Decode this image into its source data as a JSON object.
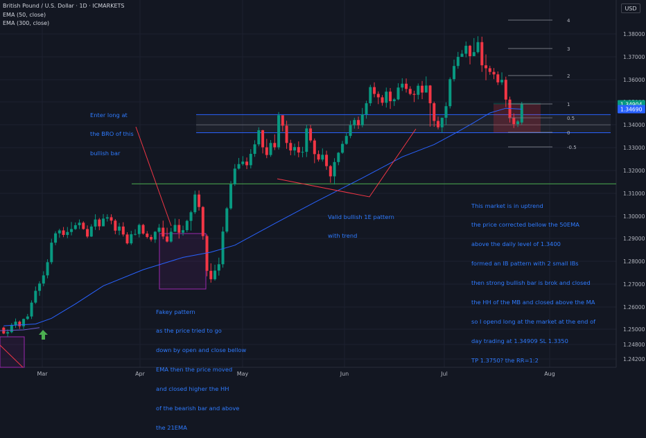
{
  "header": {
    "title": "British Pound / U.S. Dollar · 1D · ICMARKETS",
    "indicator_1": "EMA (50, close)",
    "indicator_2": "EMA (300, close)"
  },
  "currency_button": "USD",
  "price_axis": {
    "labels": [
      "1.38000",
      "1.37000",
      "1.36000",
      "1.35000",
      "1.34000",
      "1.33000",
      "1.32000",
      "1.31000",
      "1.30000",
      "1.29000",
      "1.28000",
      "1.27000",
      "1.26000",
      "1.25000",
      "1.24800",
      "1.24200"
    ],
    "tags": [
      {
        "label": "1.34904",
        "bg": "#089981"
      },
      {
        "label": "1.34690",
        "bg": "#2962ff"
      }
    ]
  },
  "time_axis": {
    "labels": [
      "Mar",
      "Apr",
      "May",
      "Jun",
      "Jul",
      "Aug"
    ]
  },
  "fib_levels": [
    "4",
    "3",
    "2",
    "1",
    "0.5",
    "0",
    "-0.5"
  ],
  "notes": {
    "entry": [
      "Enter long at",
      "the BRO of this",
      "bullish bar"
    ],
    "fakey": [
      "Fakey pattern",
      "as the price tried to go",
      "down by open and close bellow",
      "EMA then the price moved",
      "and closed higher the HH",
      "of the bearish bar and above",
      "the 21EMA"
    ],
    "valid": [
      "Valid bullish 1E pattern",
      "with trend"
    ],
    "market": [
      "This market is in uptrend",
      "the price corrected bellow the 50EMA",
      "above the daily level of 1.3400",
      "formed an IB pattern with 2 small IBs",
      "then strong bullish bar is brok and closed",
      "the HH of the MB and closed above the MA",
      "so I opend long at the market at the end of",
      "day trading at 1.34909 SL 1.3350",
      "TP 1.3750? the RR=1:2"
    ]
  },
  "colors": {
    "up": "#089981",
    "down": "#f23645",
    "ema": "#2962ff",
    "note": "#2f7bff",
    "level": "#4caf50",
    "zone": "#787b86",
    "box": "#9c27b0",
    "arrow": "#4caf50"
  },
  "chart_data": {
    "type": "candlestick",
    "symbol": "British Pound / U.S. Dollar",
    "timeframe": "1D",
    "exchange": "ICMARKETS",
    "x_axis_labels": [
      "Mar",
      "Apr",
      "May",
      "Jun",
      "Jul",
      "Aug"
    ],
    "y_axis_labels": [
      1.38,
      1.37,
      1.36,
      1.35,
      1.34,
      1.33,
      1.32,
      1.31,
      1.3,
      1.29,
      1.28,
      1.27,
      1.26,
      1.25,
      1.248,
      1.242
    ],
    "indicators": [
      "EMA (50, close)",
      "EMA (300, close)"
    ],
    "last_price": 1.34904,
    "ema_value": 1.3469,
    "horizontal_level": 1.314,
    "support_zone": [
      1.3365,
      1.3445
    ],
    "fib_levels": [
      4,
      3,
      2,
      1,
      0.5,
      0,
      -0.5
    ],
    "candles": [
      [
        1.2507,
        1.2481,
        1.2511,
        1.2478
      ],
      [
        1.2481,
        1.2487,
        1.2499,
        1.2466
      ],
      [
        1.2487,
        1.2519,
        1.2527,
        1.2482
      ],
      [
        1.2519,
        1.2533,
        1.2547,
        1.2506
      ],
      [
        1.2533,
        1.2513,
        1.2538,
        1.2501
      ],
      [
        1.2513,
        1.2545,
        1.2547,
        1.2501
      ],
      [
        1.2545,
        1.2556,
        1.2567,
        1.2541
      ],
      [
        1.2556,
        1.2617,
        1.2627,
        1.2545
      ],
      [
        1.2617,
        1.2669,
        1.2688,
        1.2611
      ],
      [
        1.2669,
        1.2701,
        1.2711,
        1.2647
      ],
      [
        1.2701,
        1.2737,
        1.2755,
        1.2689
      ],
      [
        1.2737,
        1.2795,
        1.2808,
        1.2724
      ],
      [
        1.2795,
        1.2881,
        1.2898,
        1.2786
      ],
      [
        1.2881,
        1.2922,
        1.2931,
        1.287
      ],
      [
        1.2922,
        1.2935,
        1.2942,
        1.2903
      ],
      [
        1.2935,
        1.2915,
        1.295,
        1.2905
      ],
      [
        1.2915,
        1.2928,
        1.295,
        1.2901
      ],
      [
        1.2928,
        1.2941,
        1.2972,
        1.2913
      ],
      [
        1.2941,
        1.2958,
        1.297,
        1.2937
      ],
      [
        1.2958,
        1.2969,
        1.2983,
        1.2941
      ],
      [
        1.2969,
        1.2941,
        1.2975,
        1.2938
      ],
      [
        1.2941,
        1.2908,
        1.2957,
        1.2901
      ],
      [
        1.2908,
        1.2952,
        1.2962,
        1.2906
      ],
      [
        1.2952,
        1.2983,
        1.3006,
        1.2937
      ],
      [
        1.2983,
        1.2953,
        1.299,
        1.2936
      ],
      [
        1.2953,
        1.2987,
        1.3007,
        1.298
      ],
      [
        1.2987,
        1.2993,
        1.3006,
        1.2974
      ],
      [
        1.2993,
        1.2978,
        1.3006,
        1.2962
      ],
      [
        1.2978,
        1.2934,
        1.2985,
        1.2918
      ],
      [
        1.2934,
        1.2952,
        1.2968,
        1.2914
      ],
      [
        1.2952,
        1.2917,
        1.2971,
        1.2908
      ],
      [
        1.2917,
        1.2878,
        1.2927,
        1.2873
      ],
      [
        1.2878,
        1.2918,
        1.2933,
        1.2871
      ],
      [
        1.2918,
        1.2919,
        1.294,
        1.2913
      ],
      [
        1.2919,
        1.2959,
        1.2965,
        1.2904
      ],
      [
        1.2959,
        1.2921,
        1.2964,
        1.2916
      ],
      [
        1.2921,
        1.2906,
        1.2932,
        1.2899
      ],
      [
        1.2906,
        1.2895,
        1.2916,
        1.2886
      ],
      [
        1.2895,
        1.2929,
        1.2932,
        1.288
      ],
      [
        1.2929,
        1.2947,
        1.2963,
        1.2923
      ],
      [
        1.2947,
        1.2908,
        1.2978,
        1.2896
      ],
      [
        1.2908,
        1.2886,
        1.2947,
        1.2882
      ],
      [
        1.2886,
        1.2929,
        1.2946,
        1.2881
      ],
      [
        1.2929,
        1.2959,
        1.2987,
        1.2941
      ],
      [
        1.2959,
        1.2925,
        1.2985,
        1.2899
      ],
      [
        1.2925,
        1.2936,
        1.2956,
        1.2912
      ],
      [
        1.2936,
        1.2977,
        1.2982,
        1.2927
      ],
      [
        1.2977,
        1.3015,
        1.3022,
        1.2934
      ],
      [
        1.3015,
        1.3093,
        1.311,
        1.3007
      ],
      [
        1.3093,
        1.3038,
        1.3111,
        1.3022
      ],
      [
        1.3038,
        1.291,
        1.3042,
        1.2894
      ],
      [
        1.291,
        1.2757,
        1.2917,
        1.2733
      ],
      [
        1.2757,
        1.272,
        1.279,
        1.2705
      ],
      [
        1.272,
        1.2758,
        1.2784,
        1.2714
      ],
      [
        1.2758,
        1.2786,
        1.2815,
        1.2736
      ],
      [
        1.2786,
        1.293,
        1.2951,
        1.2771
      ],
      [
        1.293,
        1.3032,
        1.3038,
        1.2923
      ],
      [
        1.3032,
        1.3138,
        1.3152,
        1.3026
      ],
      [
        1.3138,
        1.3207,
        1.3227,
        1.3131
      ],
      [
        1.3207,
        1.3227,
        1.3254,
        1.3203
      ],
      [
        1.3227,
        1.3238,
        1.3262,
        1.322
      ],
      [
        1.3238,
        1.3222,
        1.3256,
        1.3205
      ],
      [
        1.3222,
        1.3272,
        1.3293,
        1.3208
      ],
      [
        1.3272,
        1.3314,
        1.3332,
        1.3259
      ],
      [
        1.3314,
        1.3376,
        1.3389,
        1.3305
      ],
      [
        1.3376,
        1.3301,
        1.3378,
        1.3274
      ],
      [
        1.3301,
        1.3267,
        1.3338,
        1.3253
      ],
      [
        1.3267,
        1.332,
        1.3333,
        1.3259
      ],
      [
        1.332,
        1.3301,
        1.3358,
        1.3289
      ],
      [
        1.3301,
        1.3442,
        1.3456,
        1.3291
      ],
      [
        1.3442,
        1.3396,
        1.343,
        1.3371
      ],
      [
        1.3396,
        1.332,
        1.3418,
        1.3294
      ],
      [
        1.332,
        1.3287,
        1.3334,
        1.3266
      ],
      [
        1.3287,
        1.3302,
        1.3317,
        1.3265
      ],
      [
        1.3302,
        1.3278,
        1.3327,
        1.3257
      ],
      [
        1.3278,
        1.3281,
        1.3303,
        1.3257
      ],
      [
        1.3281,
        1.3384,
        1.34,
        1.3258
      ],
      [
        1.3384,
        1.3331,
        1.3399,
        1.3322
      ],
      [
        1.3331,
        1.3271,
        1.334,
        1.3231
      ],
      [
        1.3271,
        1.3247,
        1.3287,
        1.3238
      ],
      [
        1.3247,
        1.3268,
        1.3296,
        1.3238
      ],
      [
        1.3268,
        1.3218,
        1.3286,
        1.3202
      ],
      [
        1.3218,
        1.3173,
        1.3223,
        1.3145
      ],
      [
        1.3173,
        1.3236,
        1.3253,
        1.3137
      ],
      [
        1.3236,
        1.3277,
        1.328,
        1.3222
      ],
      [
        1.3277,
        1.3316,
        1.3329,
        1.3272
      ],
      [
        1.3316,
        1.3351,
        1.3365,
        1.3312
      ],
      [
        1.3351,
        1.3398,
        1.3418,
        1.3341
      ],
      [
        1.3398,
        1.3421,
        1.3431,
        1.3383
      ],
      [
        1.3421,
        1.3398,
        1.3436,
        1.3382
      ],
      [
        1.3398,
        1.3446,
        1.3474,
        1.3389
      ],
      [
        1.3446,
        1.3495,
        1.3506,
        1.3427
      ],
      [
        1.3495,
        1.3566,
        1.3576,
        1.3483
      ],
      [
        1.3566,
        1.3536,
        1.3587,
        1.3521
      ],
      [
        1.3536,
        1.3521,
        1.3547,
        1.3491
      ],
      [
        1.3521,
        1.3497,
        1.3531,
        1.3484
      ],
      [
        1.3497,
        1.3546,
        1.3564,
        1.3476
      ],
      [
        1.3546,
        1.3504,
        1.3562,
        1.347
      ],
      [
        1.3504,
        1.3512,
        1.3518,
        1.3483
      ],
      [
        1.3512,
        1.3564,
        1.3583,
        1.3508
      ],
      [
        1.3564,
        1.3581,
        1.3605,
        1.3549
      ],
      [
        1.3581,
        1.3558,
        1.3604,
        1.3542
      ],
      [
        1.3558,
        1.3536,
        1.357,
        1.353
      ],
      [
        1.3536,
        1.3532,
        1.355,
        1.35
      ],
      [
        1.3532,
        1.3572,
        1.3582,
        1.3512
      ],
      [
        1.3572,
        1.3542,
        1.3593,
        1.3513
      ],
      [
        1.3542,
        1.3573,
        1.3613,
        1.3571
      ],
      [
        1.3573,
        1.3495,
        1.3575,
        1.3392
      ],
      [
        1.3495,
        1.3417,
        1.3502,
        1.3391
      ],
      [
        1.3417,
        1.3389,
        1.3436,
        1.338
      ],
      [
        1.3389,
        1.3431,
        1.3432,
        1.3365
      ],
      [
        1.3431,
        1.3482,
        1.3499,
        1.3399
      ],
      [
        1.3482,
        1.3601,
        1.3609,
        1.3472
      ],
      [
        1.3601,
        1.3659,
        1.3687,
        1.3591
      ],
      [
        1.3659,
        1.3699,
        1.3721,
        1.3647
      ],
      [
        1.3699,
        1.3713,
        1.3729,
        1.3705
      ],
      [
        1.3713,
        1.3748,
        1.3767,
        1.3697
      ],
      [
        1.3748,
        1.3702,
        1.3752,
        1.3666
      ],
      [
        1.3702,
        1.372,
        1.3782,
        1.3717
      ],
      [
        1.372,
        1.3764,
        1.379,
        1.3714
      ],
      [
        1.3764,
        1.3662,
        1.3788,
        1.3633
      ],
      [
        1.3662,
        1.3649,
        1.371,
        1.3596
      ],
      [
        1.3649,
        1.3633,
        1.366,
        1.362
      ],
      [
        1.3633,
        1.3622,
        1.365,
        1.3601
      ],
      [
        1.3622,
        1.3587,
        1.3635,
        1.3575
      ],
      [
        1.3587,
        1.3598,
        1.3631,
        1.3576
      ],
      [
        1.3598,
        1.3511,
        1.3612,
        1.3478
      ],
      [
        1.3511,
        1.3432,
        1.3524,
        1.341
      ],
      [
        1.3432,
        1.3403,
        1.345,
        1.3386
      ],
      [
        1.3403,
        1.3415,
        1.3422,
        1.339
      ],
      [
        1.341,
        1.349,
        1.3501,
        1.3401
      ]
    ],
    "ema50": [
      [
        0,
        1.2515
      ],
      [
        8,
        1.2523
      ],
      [
        12,
        1.2548
      ],
      [
        18,
        1.2611
      ],
      [
        25,
        1.2691
      ],
      [
        35,
        1.2762
      ],
      [
        45,
        1.2816
      ],
      [
        52,
        1.2839
      ],
      [
        58,
        1.287
      ],
      [
        68,
        1.2965
      ],
      [
        78,
        1.3058
      ],
      [
        90,
        1.3166
      ],
      [
        100,
        1.3259
      ],
      [
        108,
        1.3313
      ],
      [
        114,
        1.337
      ],
      [
        118,
        1.341
      ],
      [
        122,
        1.3452
      ],
      [
        126,
        1.3473
      ],
      [
        130,
        1.3469
      ]
    ],
    "ema300": [
      [
        -2,
        1.2493
      ],
      [
        5,
        1.2497
      ],
      [
        9,
        1.2507
      ]
    ]
  }
}
